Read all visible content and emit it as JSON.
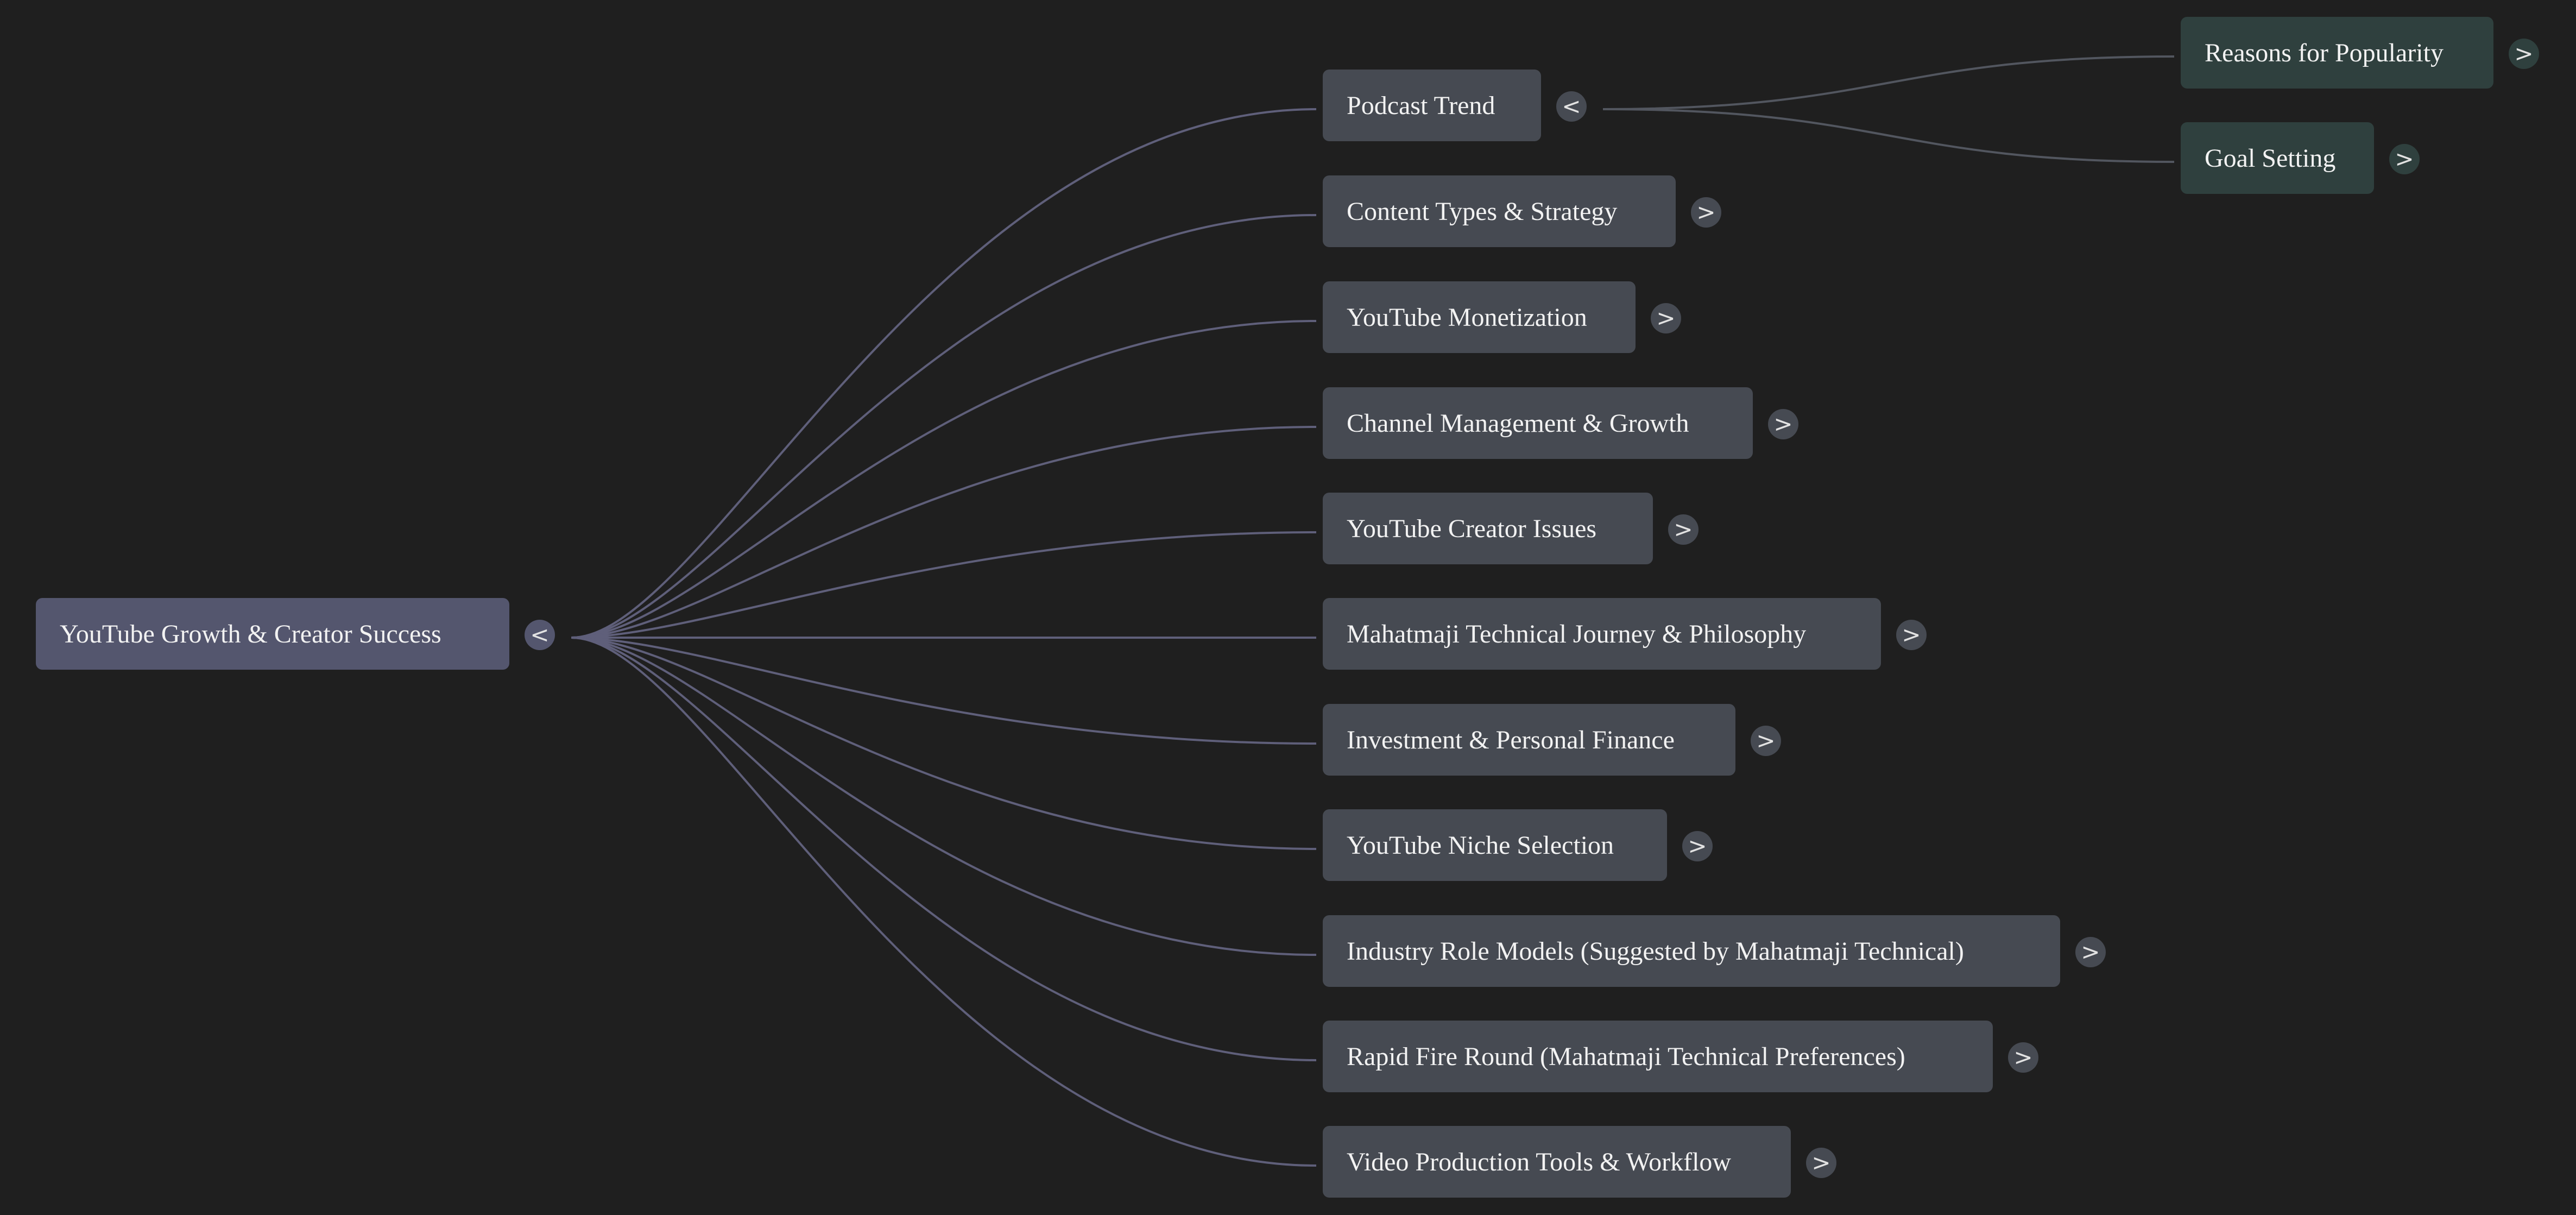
{
  "colors": {
    "background": "#1f1f1f",
    "root_node": "#54566e",
    "branch_node": "#464a52",
    "leaf_node": "#2f403e",
    "connector_root": "#5f5f7a",
    "connector_podcast": "#52565f",
    "text": "#f2f2f2"
  },
  "root": {
    "label": "YouTube Growth & Creator Success",
    "toggle": "<"
  },
  "branches": [
    {
      "label": "Podcast Trend",
      "toggle": "<"
    },
    {
      "label": "Content Types & Strategy",
      "toggle": ">"
    },
    {
      "label": "YouTube Monetization",
      "toggle": ">"
    },
    {
      "label": "Channel Management & Growth",
      "toggle": ">"
    },
    {
      "label": "YouTube Creator Issues",
      "toggle": ">"
    },
    {
      "label": "Mahatmaji Technical Journey & Philosophy",
      "toggle": ">"
    },
    {
      "label": "Investment & Personal Finance",
      "toggle": ">"
    },
    {
      "label": "YouTube Niche Selection",
      "toggle": ">"
    },
    {
      "label": "Industry Role Models (Suggested by Mahatmaji Technical)",
      "toggle": ">"
    },
    {
      "label": "Rapid Fire Round (Mahatmaji Technical Preferences)",
      "toggle": ">"
    },
    {
      "label": "Video Production Tools & Workflow",
      "toggle": ">"
    }
  ],
  "podcast_children": [
    {
      "label": "Reasons for Popularity",
      "toggle": ">"
    },
    {
      "label": "Goal Setting",
      "toggle": ">"
    }
  ]
}
